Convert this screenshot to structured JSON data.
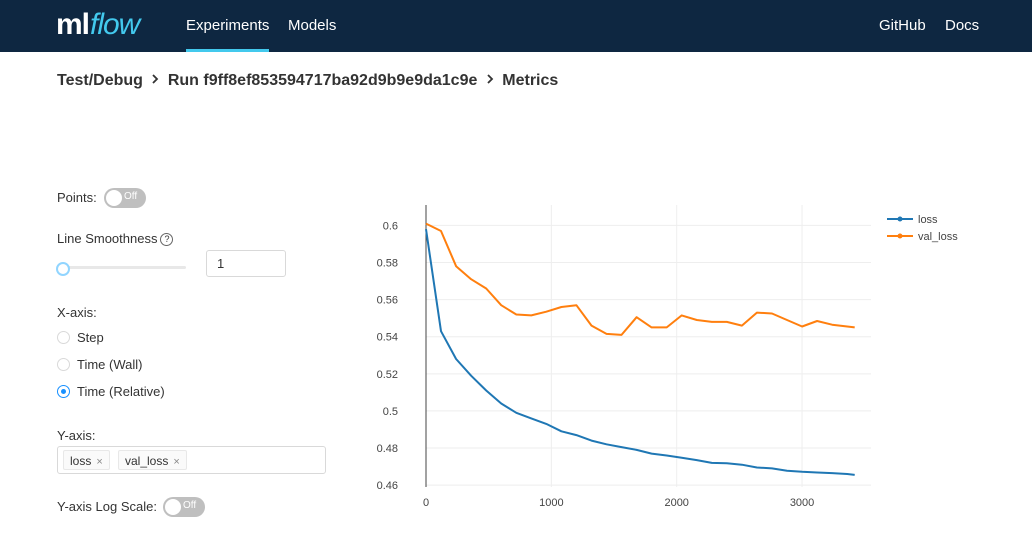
{
  "header": {
    "logo_ml": "ml",
    "logo_flow": "flow",
    "nav_left": [
      "Experiments",
      "Models"
    ],
    "nav_right": [
      "GitHub",
      "Docs"
    ]
  },
  "breadcrumb": {
    "experiment": "Test/Debug",
    "run": "Run f9ff8ef853594717ba92d9b9e9da1c9e",
    "page": "Metrics",
    "separator": ">"
  },
  "controls": {
    "points_label": "Points:",
    "points_toggle": "Off",
    "smoothness_label": "Line Smoothness",
    "smoothness_help": "?",
    "smoothness_value": "1",
    "smoothness_slider_value": 1,
    "xaxis_label": "X-axis:",
    "xaxis_options": [
      "Step",
      "Time (Wall)",
      "Time (Relative)"
    ],
    "xaxis_selected": "Time (Relative)",
    "yaxis_label": "Y-axis:",
    "yaxis_tags": [
      "loss",
      "val_loss"
    ],
    "yaxis_tag_remove": "×",
    "log_scale_label": "Y-axis Log Scale:",
    "log_scale_toggle": "Off"
  },
  "chart_data": {
    "type": "line",
    "xlabel": "",
    "ylabel": "",
    "xlim": [
      0,
      3550
    ],
    "ylim": [
      0.459,
      0.611
    ],
    "x_ticks": [
      0,
      1000,
      2000,
      3000
    ],
    "y_ticks": [
      0.46,
      0.48,
      0.5,
      0.52,
      0.54,
      0.56,
      0.58,
      0.6
    ],
    "y_tick_labels": [
      "0.46",
      "0.48",
      "0.5",
      "0.52",
      "0.54",
      "0.56",
      "0.58",
      "0.6"
    ],
    "grid": true,
    "legend_position": "top-right",
    "series": [
      {
        "name": "loss",
        "color": "#1f77b4",
        "x": [
          0,
          120,
          240,
          360,
          480,
          600,
          720,
          840,
          960,
          1080,
          1200,
          1320,
          1440,
          1560,
          1680,
          1800,
          1920,
          2040,
          2160,
          2280,
          2400,
          2520,
          2640,
          2760,
          2880,
          3000,
          3120,
          3240,
          3360,
          3420
        ],
        "y": [
          0.598,
          0.543,
          0.528,
          0.519,
          0.511,
          0.504,
          0.499,
          0.496,
          0.493,
          0.489,
          0.487,
          0.484,
          0.482,
          0.4805,
          0.479,
          0.477,
          0.476,
          0.4748,
          0.4735,
          0.472,
          0.4718,
          0.471,
          0.4695,
          0.469,
          0.4678,
          0.4672,
          0.4668,
          0.4665,
          0.466,
          0.4655
        ]
      },
      {
        "name": "val_loss",
        "color": "#ff7f0e",
        "x": [
          0,
          120,
          240,
          360,
          480,
          600,
          720,
          840,
          960,
          1080,
          1200,
          1320,
          1440,
          1560,
          1680,
          1800,
          1920,
          2040,
          2160,
          2280,
          2400,
          2520,
          2640,
          2760,
          2880,
          3000,
          3120,
          3240,
          3360,
          3420
        ],
        "y": [
          0.601,
          0.597,
          0.578,
          0.571,
          0.566,
          0.557,
          0.552,
          0.5515,
          0.5535,
          0.556,
          0.557,
          0.546,
          0.5415,
          0.541,
          0.5505,
          0.545,
          0.545,
          0.5515,
          0.549,
          0.548,
          0.548,
          0.546,
          0.553,
          0.5525,
          0.549,
          0.5455,
          0.5485,
          0.5465,
          0.5455,
          0.545
        ]
      }
    ]
  }
}
